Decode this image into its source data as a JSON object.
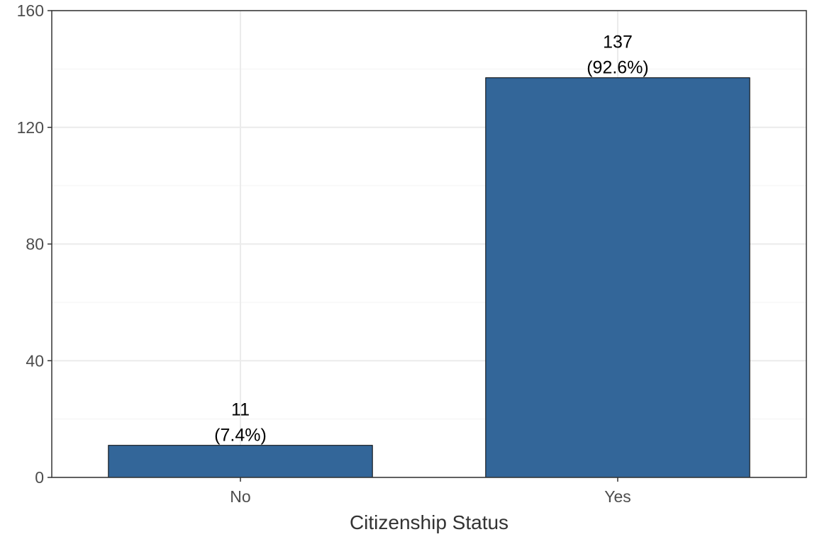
{
  "chart_data": {
    "type": "bar",
    "categories": [
      "No",
      "Yes"
    ],
    "values": [
      11,
      137
    ],
    "data_labels": [
      {
        "count": "11",
        "percent": "(7.4%)"
      },
      {
        "count": "137",
        "percent": "(92.6%)"
      }
    ],
    "title": "",
    "xlabel": "Citizenship Status",
    "ylabel": "",
    "ylim": [
      0,
      160
    ],
    "yticks": [
      0,
      40,
      80,
      120,
      160
    ],
    "grid": true,
    "legend": "none",
    "colors": {
      "bar_fill": "#336699",
      "bar_stroke": "#000000",
      "grid_major": "#ebebeb",
      "grid_minor": "#f3f3f3",
      "panel_border": "#333333"
    }
  }
}
